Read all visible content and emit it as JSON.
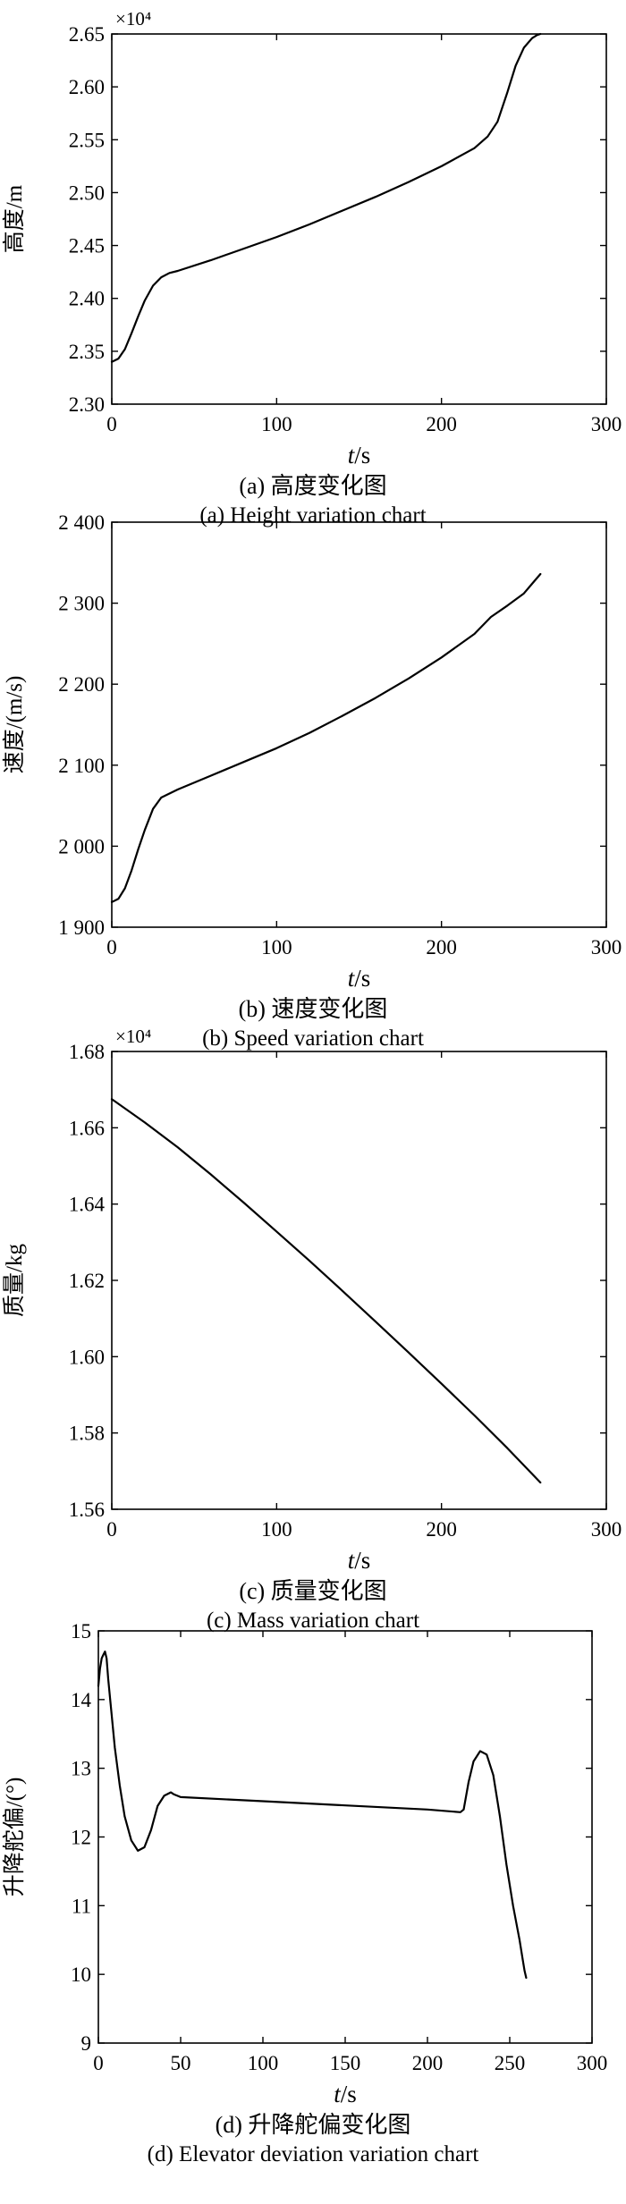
{
  "chart_data": [
    {
      "type": "line",
      "multiplier": "×10⁴",
      "ylabel": "高度/m",
      "xlabel_main": "t",
      "xlabel_unit": "/s",
      "caption_cn": "(a) 高度变化图",
      "caption_en": "(a) Height variation chart",
      "xlim": [
        0,
        300
      ],
      "ylim": [
        2.3,
        2.65
      ],
      "xticks": [
        0,
        100,
        200,
        300
      ],
      "yticks": [
        2.3,
        2.35,
        2.4,
        2.45,
        2.5,
        2.55,
        2.6,
        2.65
      ],
      "xtick_labels": [
        "0",
        "100",
        "200",
        "300"
      ],
      "ytick_labels": [
        "2.30",
        "2.35",
        "2.40",
        "2.45",
        "2.50",
        "2.55",
        "2.60",
        "2.65"
      ],
      "series": [
        {
          "x": [
            0,
            4,
            8,
            12,
            16,
            20,
            25,
            30,
            35,
            40,
            60,
            80,
            100,
            120,
            140,
            160,
            180,
            200,
            220,
            228,
            234,
            240,
            245,
            250,
            255,
            258,
            260
          ],
          "y": [
            2.34,
            2.343,
            2.352,
            2.367,
            2.383,
            2.398,
            2.412,
            2.42,
            2.424,
            2.426,
            2.436,
            2.447,
            2.458,
            2.47,
            2.483,
            2.496,
            2.51,
            2.525,
            2.542,
            2.553,
            2.567,
            2.595,
            2.62,
            2.637,
            2.646,
            2.649,
            2.65
          ]
        }
      ]
    },
    {
      "type": "line",
      "multiplier": "",
      "ylabel": "速度/(m/s)",
      "xlabel_main": "t",
      "xlabel_unit": "/s",
      "caption_cn": "(b) 速度变化图",
      "caption_en": "(b) Speed variation chart",
      "xlim": [
        0,
        300
      ],
      "ylim": [
        1900,
        2400
      ],
      "xticks": [
        0,
        100,
        200,
        300
      ],
      "yticks": [
        1900,
        2000,
        2100,
        2200,
        2300,
        2400
      ],
      "xtick_labels": [
        "0",
        "100",
        "200",
        "300"
      ],
      "ytick_labels": [
        "1 900",
        "2 000",
        "2 100",
        "2 200",
        "2 300",
        "2 400"
      ],
      "series": [
        {
          "x": [
            0,
            4,
            8,
            12,
            16,
            20,
            25,
            30,
            35,
            40,
            60,
            80,
            100,
            120,
            140,
            160,
            180,
            200,
            220,
            230,
            240,
            250,
            255,
            260
          ],
          "y": [
            1931,
            1935,
            1948,
            1970,
            1996,
            2020,
            2046,
            2060,
            2065,
            2070,
            2087,
            2104,
            2121,
            2140,
            2161,
            2183,
            2207,
            2233,
            2262,
            2283,
            2297,
            2312,
            2324,
            2336
          ]
        }
      ]
    },
    {
      "type": "line",
      "multiplier": "×10⁴",
      "ylabel": "质量/kg",
      "xlabel_main": "t",
      "xlabel_unit": "/s",
      "caption_cn": "(c) 质量变化图",
      "caption_en": "(c) Mass variation chart",
      "xlim": [
        0,
        300
      ],
      "ylim": [
        1.56,
        1.68
      ],
      "xticks": [
        0,
        100,
        200,
        300
      ],
      "yticks": [
        1.56,
        1.58,
        1.6,
        1.62,
        1.64,
        1.66,
        1.68
      ],
      "xtick_labels": [
        "0",
        "100",
        "200",
        "300"
      ],
      "ytick_labels": [
        "1.56",
        "1.58",
        "1.60",
        "1.62",
        "1.64",
        "1.66",
        "1.68"
      ],
      "series": [
        {
          "x": [
            0,
            20,
            40,
            60,
            80,
            100,
            120,
            140,
            160,
            180,
            200,
            220,
            240,
            260
          ],
          "y": [
            1.6675,
            1.6614,
            1.6549,
            1.6478,
            1.6404,
            1.6328,
            1.6251,
            1.6172,
            1.6092,
            1.6011,
            1.5929,
            1.5846,
            1.576,
            1.567
          ]
        }
      ]
    },
    {
      "type": "line",
      "multiplier": "",
      "ylabel": "升降舵偏/(°)",
      "xlabel_main": "t",
      "xlabel_unit": "/s",
      "caption_cn": "(d) 升降舵偏变化图",
      "caption_en": "(d) Elevator deviation variation chart",
      "xlim": [
        0,
        300
      ],
      "ylim": [
        9,
        15
      ],
      "xticks": [
        0,
        50,
        100,
        150,
        200,
        250,
        300
      ],
      "yticks": [
        9,
        10,
        11,
        12,
        13,
        14,
        15
      ],
      "xtick_labels": [
        "0",
        "50",
        "100",
        "150",
        "200",
        "250",
        "300"
      ],
      "ytick_labels": [
        "9",
        "10",
        "11",
        "12",
        "13",
        "14",
        "15"
      ],
      "series": [
        {
          "x": [
            0,
            1,
            2,
            3,
            4,
            5,
            6,
            8,
            10,
            13,
            16,
            20,
            24,
            28,
            32,
            36,
            40,
            44,
            46,
            48,
            50,
            100,
            150,
            200,
            220,
            222,
            225,
            228,
            232,
            236,
            240,
            244,
            248,
            252,
            256,
            258,
            259,
            260
          ],
          "y": [
            14.2,
            14.45,
            14.6,
            14.65,
            14.7,
            14.6,
            14.3,
            13.8,
            13.3,
            12.75,
            12.3,
            11.95,
            11.8,
            11.85,
            12.1,
            12.45,
            12.6,
            12.65,
            12.62,
            12.6,
            12.58,
            12.52,
            12.46,
            12.4,
            12.36,
            12.4,
            12.8,
            13.1,
            13.25,
            13.2,
            12.9,
            12.3,
            11.6,
            11.0,
            10.5,
            10.2,
            10.05,
            9.95
          ]
        }
      ]
    }
  ]
}
